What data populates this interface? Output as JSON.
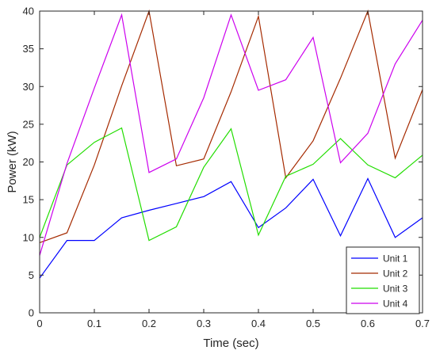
{
  "chart_data": {
    "type": "line",
    "title": "",
    "xlabel": "Time (sec)",
    "ylabel": "Power (kW)",
    "xlim": [
      0,
      0.7
    ],
    "ylim": [
      0,
      40
    ],
    "xticks": [
      0,
      0.1,
      0.2,
      0.3,
      0.4,
      0.5,
      0.6,
      0.7
    ],
    "xtick_labels": [
      "0",
      "0.1",
      "0.2",
      "0.3",
      "0.4",
      "0.5",
      "0.6",
      "0.7"
    ],
    "yticks": [
      0,
      5,
      10,
      15,
      20,
      25,
      30,
      35,
      40
    ],
    "ytick_labels": [
      "0",
      "5",
      "10",
      "15",
      "20",
      "25",
      "30",
      "35",
      "40"
    ],
    "grid": false,
    "legend_position": "bottom-right",
    "x": [
      0,
      0.05,
      0.1,
      0.15,
      0.2,
      0.25,
      0.3,
      0.35,
      0.4,
      0.45,
      0.5,
      0.55,
      0.6,
      0.65,
      0.7
    ],
    "series": [
      {
        "name": "Unit 1",
        "color": "#0000ff",
        "values": [
          4.6,
          9.6,
          9.6,
          12.6,
          13.6,
          14.5,
          15.4,
          17.4,
          11.3,
          13.9,
          17.7,
          10.2,
          17.8,
          10.0,
          12.6
        ]
      },
      {
        "name": "Unit 2",
        "color": "#a52a00",
        "values": [
          9.3,
          10.6,
          19.6,
          30.1,
          40.0,
          19.5,
          20.4,
          29.3,
          39.3,
          17.9,
          22.8,
          31.1,
          40.0,
          20.5,
          29.6
        ]
      },
      {
        "name": "Unit 3",
        "color": "#22dd00",
        "values": [
          10.0,
          19.6,
          22.6,
          24.5,
          9.6,
          11.4,
          19.3,
          24.4,
          10.3,
          18.1,
          19.7,
          23.1,
          19.6,
          17.9,
          20.9
        ]
      },
      {
        "name": "Unit 4",
        "color": "#cc00ee",
        "values": [
          7.6,
          19.8,
          29.8,
          39.5,
          18.6,
          20.4,
          28.5,
          39.5,
          29.5,
          30.9,
          36.5,
          19.9,
          23.8,
          33.0,
          38.8
        ]
      }
    ]
  }
}
